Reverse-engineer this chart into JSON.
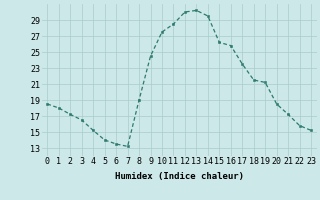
{
  "x": [
    0,
    1,
    2,
    3,
    4,
    5,
    6,
    7,
    8,
    9,
    10,
    11,
    12,
    13,
    14,
    15,
    16,
    17,
    18,
    19,
    20,
    21,
    22,
    23
  ],
  "y": [
    18.5,
    18.0,
    17.2,
    16.5,
    15.2,
    14.0,
    13.5,
    13.2,
    19.0,
    24.5,
    27.5,
    28.5,
    30.0,
    30.2,
    29.5,
    26.2,
    25.8,
    23.5,
    21.5,
    21.2,
    18.5,
    17.2,
    15.8,
    15.2
  ],
  "line_color": "#2d7a6e",
  "marker_color": "#2d7a6e",
  "background_color": "#cce8e8",
  "grid_color": "#aacccc",
  "xlabel": "Humidex (Indice chaleur)",
  "ylim": [
    12,
    31
  ],
  "xlim": [
    -0.5,
    23.5
  ],
  "yticks": [
    13,
    15,
    17,
    19,
    21,
    23,
    25,
    27,
    29
  ],
  "xticks": [
    0,
    1,
    2,
    3,
    4,
    5,
    6,
    7,
    8,
    9,
    10,
    11,
    12,
    13,
    14,
    15,
    16,
    17,
    18,
    19,
    20,
    21,
    22,
    23
  ],
  "xtick_labels": [
    "0",
    "1",
    "2",
    "3",
    "4",
    "5",
    "6",
    "7",
    "8",
    "9",
    "10",
    "11",
    "12",
    "13",
    "14",
    "15",
    "16",
    "17",
    "18",
    "19",
    "20",
    "21",
    "22",
    "23"
  ],
  "xlabel_fontsize": 6.5,
  "tick_fontsize": 6.0
}
